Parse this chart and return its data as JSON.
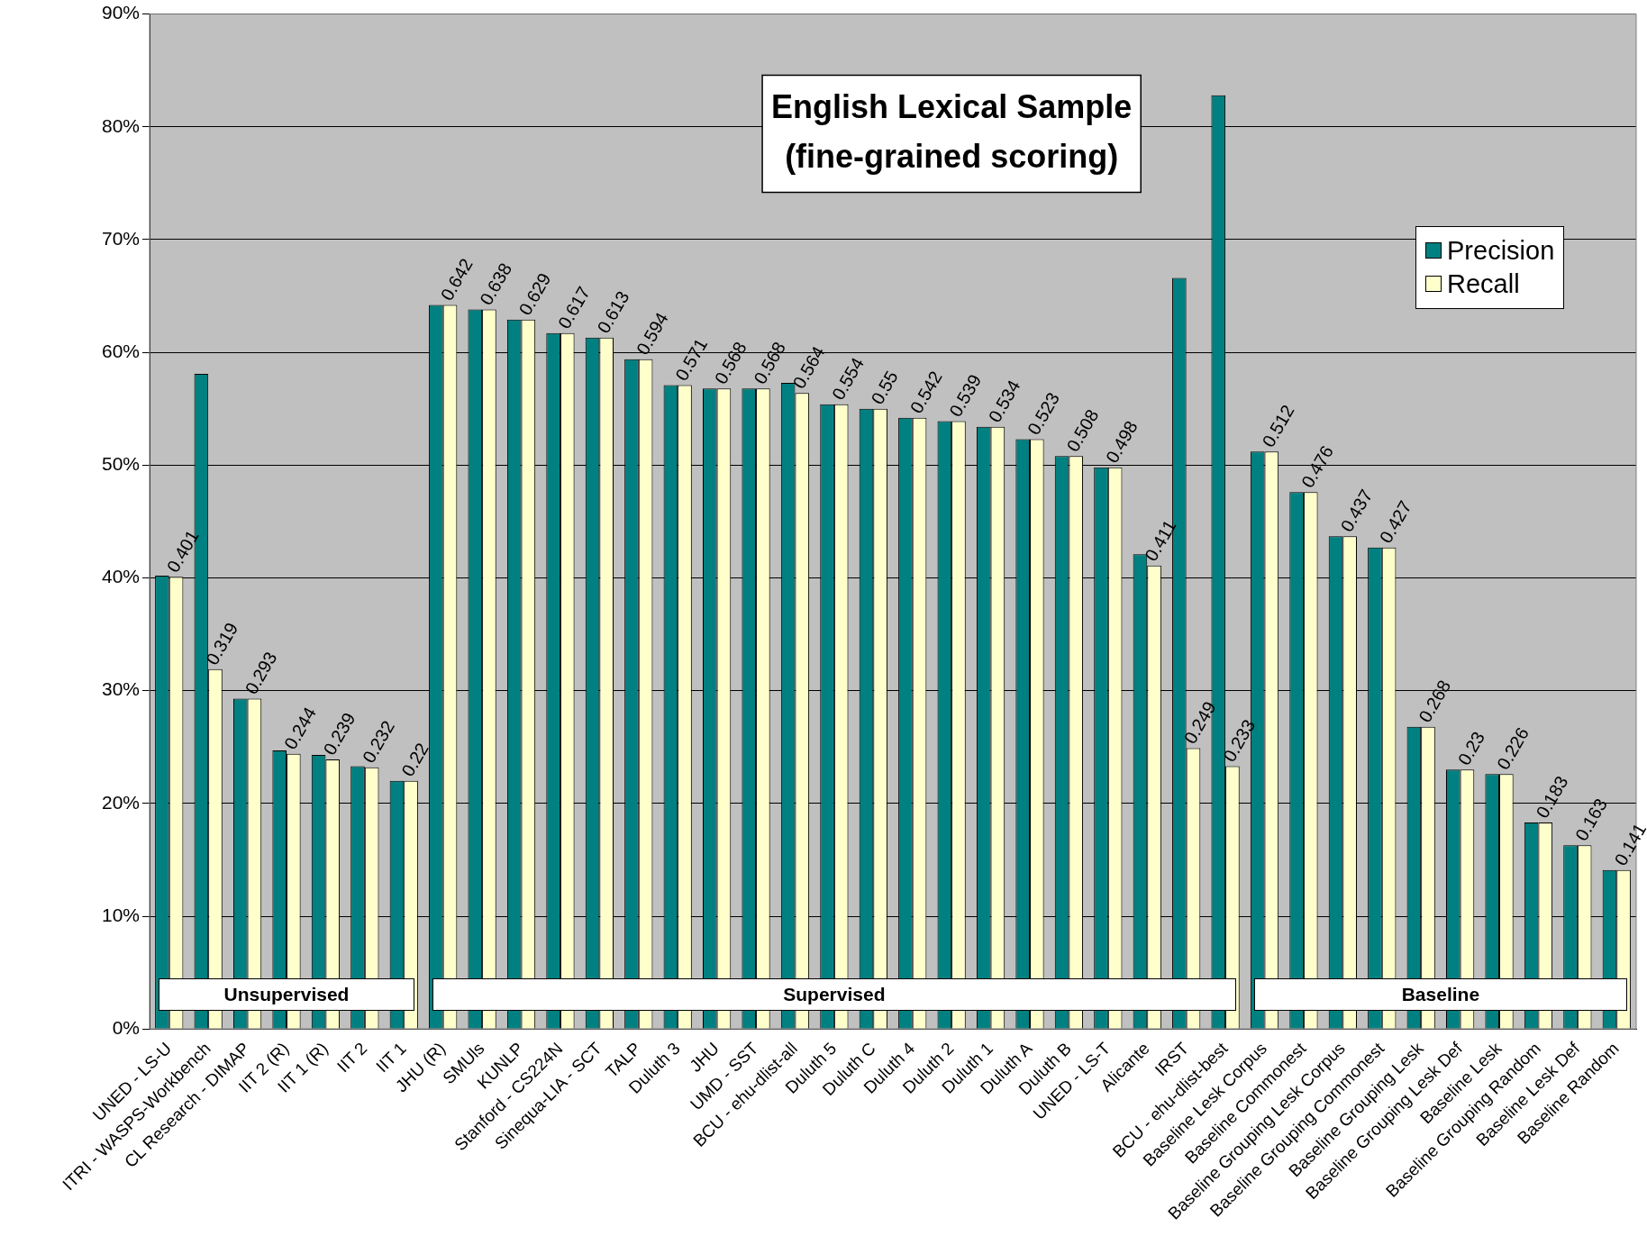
{
  "chart_data": {
    "type": "bar",
    "title": "English Lexical Sample\n(fine-grained scoring)",
    "categories": [
      "UNED - LS-U",
      "ITRI - WASPS-Workbench",
      "CL Research - DIMAP",
      "IIT 2 (R)",
      "IIT 1 (R)",
      "IIT 2",
      "IIT 1",
      "JHU (R)",
      "SMUls",
      "KUNLP",
      "Stanford - CS224N",
      "Sinequa-LIA - SCT",
      "TALP",
      "Duluth 3",
      "JHU",
      "UMD - SST",
      "BCU - ehu-dlist-all",
      "Duluth 5",
      "Duluth C",
      "Duluth 4",
      "Duluth 2",
      "Duluth 1",
      "Duluth A",
      "Duluth B",
      "UNED - LS-T",
      "Alicante",
      "IRST",
      "BCU - ehu-dlist-best",
      "Baseline Lesk Corpus",
      "Baseline Commonest",
      "Baseline Grouping Lesk Corpus",
      "Baseline Grouping Commonest",
      "Baseline Grouping Lesk",
      "Baseline Grouping Lesk Def",
      "Baseline Lesk",
      "Baseline Grouping Random",
      "Baseline Lesk Def",
      "Baseline Random"
    ],
    "series": [
      {
        "name": "Precision",
        "color": "#008080",
        "values": [
          0.402,
          0.581,
          0.293,
          0.247,
          0.243,
          0.233,
          0.22,
          0.642,
          0.638,
          0.629,
          0.617,
          0.613,
          0.594,
          0.571,
          0.568,
          0.568,
          0.573,
          0.554,
          0.55,
          0.542,
          0.539,
          0.534,
          0.523,
          0.508,
          0.498,
          0.421,
          0.666,
          0.828,
          0.512,
          0.476,
          0.437,
          0.427,
          0.268,
          0.23,
          0.226,
          0.183,
          0.163,
          0.141
        ]
      },
      {
        "name": "Recall",
        "color": "#ffffcc",
        "values": [
          0.401,
          0.319,
          0.293,
          0.244,
          0.239,
          0.232,
          0.22,
          0.642,
          0.638,
          0.629,
          0.617,
          0.613,
          0.594,
          0.571,
          0.568,
          0.568,
          0.564,
          0.554,
          0.55,
          0.542,
          0.539,
          0.534,
          0.523,
          0.508,
          0.498,
          0.411,
          0.249,
          0.233,
          0.512,
          0.476,
          0.437,
          0.427,
          0.268,
          0.23,
          0.226,
          0.183,
          0.163,
          0.141
        ],
        "value_labels": [
          "0.401",
          "0.319",
          "0.293",
          "0.244",
          "0.239",
          "0.232",
          "0.22",
          "0.642",
          "0.638",
          "0.629",
          "0.617",
          "0.613",
          "0.594",
          "0.571",
          "0.568",
          "0.568",
          "0.564",
          "0.554",
          "0.55",
          "0.542",
          "0.539",
          "0.534",
          "0.523",
          "0.508",
          "0.498",
          "0.411",
          "0.249",
          "0.233",
          "0.512",
          "0.476",
          "0.437",
          "0.427",
          "0.268",
          "0.23",
          "0.226",
          "0.183",
          "0.163",
          "0.141"
        ]
      }
    ],
    "ylim": [
      0,
      0.9
    ],
    "yticks": [
      {
        "value": 0,
        "label": "0%"
      },
      {
        "value": 0.1,
        "label": "10%"
      },
      {
        "value": 0.2,
        "label": "20%"
      },
      {
        "value": 0.3,
        "label": "30%"
      },
      {
        "value": 0.4,
        "label": "40%"
      },
      {
        "value": 0.5,
        "label": "50%"
      },
      {
        "value": 0.6,
        "label": "60%"
      },
      {
        "value": 0.7,
        "label": "70%"
      },
      {
        "value": 0.8,
        "label": "80%"
      },
      {
        "value": 0.9,
        "label": "90%"
      }
    ],
    "grid": "y",
    "legend": "top right",
    "annotations": [
      "Unsupervised",
      "Supervised",
      "Baseline"
    ]
  }
}
